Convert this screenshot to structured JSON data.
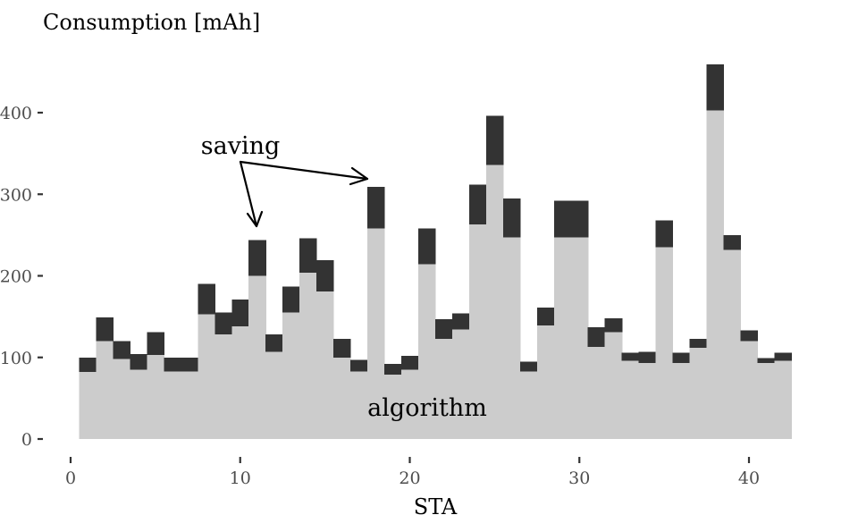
{
  "chart_data": {
    "type": "bar",
    "stacked": true,
    "title": "",
    "ylabel": "Consumption [mAh]",
    "xlabel": "STA",
    "xlim": [
      0,
      43
    ],
    "ylim": [
      0,
      460
    ],
    "x_ticks": [
      0,
      10,
      20,
      30,
      40
    ],
    "y_ticks": [
      0,
      100,
      200,
      300,
      400
    ],
    "grid": false,
    "legend": "none",
    "x": [
      1,
      2,
      3,
      4,
      5,
      6,
      7,
      8,
      9,
      10,
      11,
      12,
      13,
      14,
      15,
      16,
      17,
      18,
      19,
      20,
      21,
      22,
      23,
      24,
      25,
      26,
      27,
      28,
      29,
      30,
      31,
      32,
      33,
      34,
      35,
      36,
      37,
      38,
      39,
      40,
      41,
      42
    ],
    "series": [
      {
        "key": "algorithm",
        "color": "#cccccc",
        "values": [
          82,
          120,
          98,
          85,
          103,
          83,
          83,
          153,
          128,
          138,
          200,
          107,
          155,
          204,
          181,
          100,
          83,
          258,
          79,
          85,
          214,
          123,
          134,
          263,
          336,
          247,
          83,
          139,
          247,
          247,
          113,
          131,
          96,
          93,
          235,
          93,
          112,
          403,
          232,
          120,
          93,
          96
        ]
      },
      {
        "key": "saving",
        "color": "#333333",
        "values": [
          18,
          29,
          22,
          19,
          28,
          17,
          17,
          37,
          27,
          33,
          44,
          21,
          32,
          42,
          38,
          23,
          14,
          51,
          13,
          17,
          44,
          24,
          20,
          49,
          60,
          48,
          12,
          22,
          45,
          45,
          24,
          17,
          10,
          14,
          33,
          13,
          11,
          56,
          18,
          13,
          6,
          10
        ]
      }
    ],
    "annotations": [
      {
        "text": "saving"
      },
      {
        "text": "algorithm"
      }
    ]
  }
}
